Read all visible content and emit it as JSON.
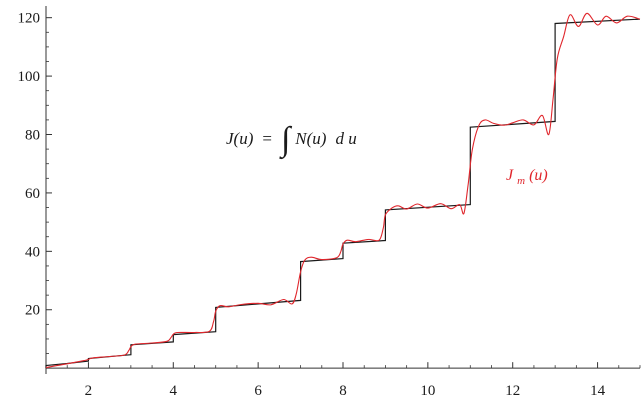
{
  "chart_data": {
    "type": "line",
    "xlim": [
      1,
      15
    ],
    "ylim": [
      -2,
      124
    ],
    "x_ticks": [
      2,
      4,
      6,
      8,
      10,
      12,
      14
    ],
    "y_ticks": [
      20,
      40,
      60,
      80,
      100,
      120
    ],
    "grid": false,
    "annotation": {
      "lhs": "J(u)",
      "equals": "=",
      "integral": "∫",
      "integrand": "N(u)",
      "differential": "d u"
    },
    "series": [
      {
        "style": "step",
        "color": "#1a1a1a",
        "points": [
          [
            1,
            0
          ],
          [
            1,
            0.9
          ],
          [
            1.2,
            1.2
          ],
          [
            1.5,
            1.6
          ],
          [
            1.8,
            2.1
          ],
          [
            2,
            2.4
          ],
          [
            2,
            3.3
          ],
          [
            3,
            4.6
          ],
          [
            3,
            8.0
          ],
          [
            4,
            9.0
          ],
          [
            4,
            11.5
          ],
          [
            5,
            12.5
          ],
          [
            5,
            20.8
          ],
          [
            7,
            23.2
          ],
          [
            7,
            36.5
          ],
          [
            8,
            37.5
          ],
          [
            8,
            42.8
          ],
          [
            9,
            43.7
          ],
          [
            9,
            54.2
          ],
          [
            11,
            56.0
          ],
          [
            11,
            82.5
          ],
          [
            13,
            84.5
          ],
          [
            13,
            118.0
          ],
          [
            15,
            119.5
          ]
        ]
      },
      {
        "name": "J_m(u)",
        "style": "smooth",
        "color": "#e0262c",
        "label_text": "J",
        "label_sub": "m",
        "label_suffix": "(u)",
        "points": [
          [
            1.0,
            0.2
          ],
          [
            1.5,
            1.5
          ],
          [
            1.9,
            2.6
          ],
          [
            2.0,
            3.0
          ],
          [
            2.1,
            3.5
          ],
          [
            2.5,
            4.0
          ],
          [
            2.85,
            4.5
          ],
          [
            2.95,
            6.0
          ],
          [
            3.0,
            7.3
          ],
          [
            3.1,
            8.2
          ],
          [
            3.5,
            8.6
          ],
          [
            3.85,
            9.2
          ],
          [
            3.95,
            10.6
          ],
          [
            4.0,
            11.6
          ],
          [
            4.1,
            12.2
          ],
          [
            4.5,
            12.2
          ],
          [
            4.85,
            12.6
          ],
          [
            4.95,
            16.0
          ],
          [
            5.0,
            19.5
          ],
          [
            5.1,
            21.4
          ],
          [
            5.3,
            21.0
          ],
          [
            5.6,
            21.8
          ],
          [
            6.0,
            22.2
          ],
          [
            6.3,
            21.7
          ],
          [
            6.6,
            23.5
          ],
          [
            6.8,
            22.0
          ],
          [
            6.9,
            25.5
          ],
          [
            7.0,
            33.0
          ],
          [
            7.1,
            37.0
          ],
          [
            7.25,
            38.0
          ],
          [
            7.5,
            37.2
          ],
          [
            7.85,
            37.8
          ],
          [
            7.95,
            40.0
          ],
          [
            8.0,
            42.5
          ],
          [
            8.1,
            43.8
          ],
          [
            8.3,
            43.3
          ],
          [
            8.6,
            44.1
          ],
          [
            8.85,
            43.8
          ],
          [
            8.95,
            48.0
          ],
          [
            9.0,
            52.5
          ],
          [
            9.15,
            54.8
          ],
          [
            9.3,
            55.6
          ],
          [
            9.5,
            54.5
          ],
          [
            9.75,
            56.2
          ],
          [
            10.0,
            54.8
          ],
          [
            10.3,
            56.3
          ],
          [
            10.55,
            54.6
          ],
          [
            10.75,
            56.0
          ],
          [
            10.85,
            53.0
          ],
          [
            10.95,
            63.0
          ],
          [
            11.05,
            75.0
          ],
          [
            11.2,
            83.0
          ],
          [
            11.35,
            85.0
          ],
          [
            11.55,
            83.8
          ],
          [
            11.8,
            83.2
          ],
          [
            12.0,
            84.0
          ],
          [
            12.25,
            85.0
          ],
          [
            12.5,
            83.3
          ],
          [
            12.7,
            86.5
          ],
          [
            12.85,
            80.0
          ],
          [
            12.95,
            92.0
          ],
          [
            13.05,
            106.0
          ],
          [
            13.2,
            113.5
          ],
          [
            13.35,
            121.0
          ],
          [
            13.55,
            117.0
          ],
          [
            13.75,
            121.5
          ],
          [
            14.0,
            117.5
          ],
          [
            14.2,
            120.5
          ],
          [
            14.45,
            118.2
          ],
          [
            14.7,
            120.5
          ],
          [
            15.0,
            119.5
          ]
        ]
      }
    ]
  }
}
